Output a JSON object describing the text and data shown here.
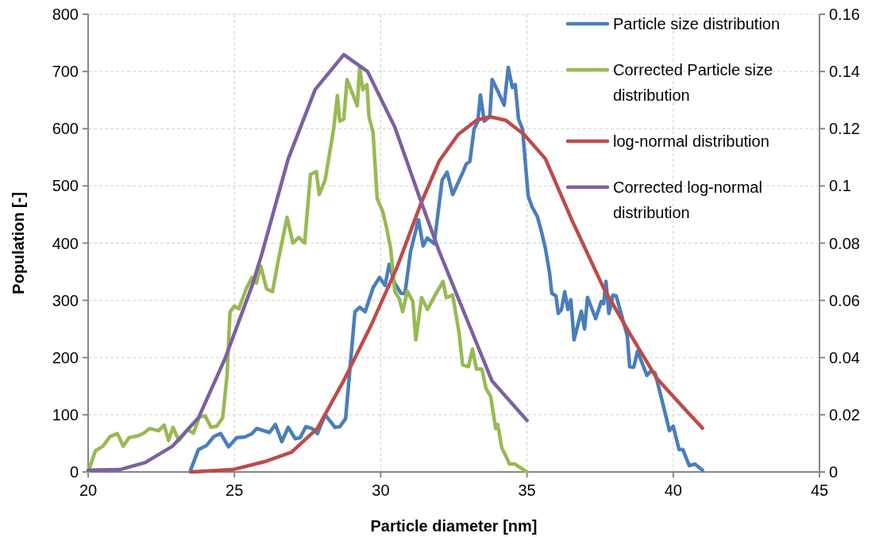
{
  "chart_data": {
    "type": "line",
    "xlabel": "Particle diameter [nm]",
    "ylabel": "Population [-]",
    "xlim": [
      20,
      45
    ],
    "xticks": [
      20,
      25,
      30,
      35,
      40,
      45
    ],
    "ylim": [
      0,
      800
    ],
    "yticks": [
      0,
      100,
      200,
      300,
      400,
      500,
      600,
      700,
      800
    ],
    "y2lim": [
      0,
      0.16
    ],
    "y2ticks": [
      0,
      0.02,
      0.04,
      0.06,
      0.08,
      0.1,
      0.12,
      0.14,
      0.16
    ],
    "grid": true,
    "legend": "top right",
    "marker": "none",
    "line_style": "solid",
    "series": [
      {
        "name": "Particle size distribution",
        "color": "#4a7ebb",
        "x": [
          23.5,
          23.77,
          24.04,
          24.3,
          24.53,
          24.8,
          25.08,
          25.35,
          25.6,
          25.76,
          26.2,
          26.4,
          26.62,
          26.84,
          27.08,
          27.25,
          27.44,
          27.65,
          27.84,
          28.1,
          28.44,
          28.6,
          28.8,
          29.12,
          29.28,
          29.47,
          29.74,
          29.96,
          30.15,
          30.29,
          30.48,
          30.7,
          30.83,
          31.02,
          31.29,
          31.45,
          31.59,
          31.83,
          32.1,
          32.27,
          32.46,
          32.65,
          32.81,
          32.92,
          33.05,
          33.19,
          33.32,
          33.41,
          33.54,
          33.73,
          33.81,
          34.03,
          34.22,
          34.36,
          34.5,
          34.6,
          34.71,
          34.85,
          35.04,
          35.17,
          35.36,
          35.5,
          35.63,
          35.77,
          35.85,
          35.99,
          36.07,
          36.18,
          36.29,
          36.4,
          36.5,
          36.61,
          36.86,
          36.97,
          37.07,
          37.35,
          37.54,
          37.62,
          37.7,
          37.8,
          37.94,
          38.05,
          38.43,
          38.51,
          38.65,
          38.78,
          39.1,
          39.25,
          39.38,
          39.7,
          39.87,
          40.0,
          40.2,
          40.33,
          40.55,
          40.74,
          41.0
        ],
        "values": [
          3,
          39,
          46,
          62,
          67,
          44,
          60,
          61,
          67,
          76,
          69,
          83,
          53,
          78,
          58,
          60,
          79,
          76,
          67,
          100,
          78,
          79,
          93,
          280,
          288,
          280,
          322,
          340,
          326,
          363,
          330,
          312,
          312,
          385,
          441,
          395,
          409,
          399,
          510,
          524,
          485,
          506,
          524,
          538,
          543,
          599,
          613,
          659,
          613,
          621,
          686,
          663,
          641,
          707,
          672,
          677,
          617,
          599,
          483,
          464,
          446,
          419,
          391,
          349,
          312,
          308,
          277,
          284,
          315,
          284,
          301,
          231,
          281,
          250,
          305,
          268,
          298,
          294,
          333,
          277,
          309,
          308,
          238,
          184,
          183,
          211,
          169,
          177,
          173,
          108,
          72,
          80,
          39,
          39,
          11,
          14,
          3
        ]
      },
      {
        "name": "Corrected Particle size distribution",
        "color": "#98b954",
        "x": [
          20,
          20.25,
          20.5,
          20.75,
          21,
          21.2,
          21.4,
          21.7,
          21.9,
          22.1,
          22.4,
          22.6,
          22.75,
          22.9,
          23.1,
          23.4,
          23.6,
          23.8,
          24.0,
          24.2,
          24.4,
          24.6,
          24.75,
          24.85,
          25.0,
          25.15,
          25.4,
          25.6,
          25.75,
          25.9,
          26.1,
          26.3,
          26.5,
          26.8,
          27.0,
          27.2,
          27.4,
          27.6,
          27.8,
          27.9,
          28.1,
          28.39,
          28.52,
          28.6,
          28.74,
          28.85,
          29.2,
          29.28,
          29.39,
          29.53,
          29.6,
          29.74,
          29.88,
          30.07,
          30.2,
          30.34,
          30.48,
          30.64,
          30.75,
          30.91,
          31.1,
          31.2,
          31.4,
          31.6,
          31.86,
          32.13,
          32.24,
          32.46,
          32.68,
          32.8,
          33.0,
          33.14,
          33.27,
          33.46,
          33.6,
          33.76,
          33.93,
          34.0,
          34.14,
          34.28,
          34.4,
          34.58,
          35.0
        ],
        "values": [
          0,
          37,
          45,
          62,
          67,
          45,
          60,
          63,
          68,
          76,
          72,
          82,
          55,
          78,
          55,
          74,
          68,
          96,
          98,
          78,
          80,
          95,
          170,
          280,
          290,
          285,
          320,
          340,
          330,
          360,
          320,
          315,
          370,
          445,
          400,
          410,
          400,
          520,
          525,
          485,
          510,
          599,
          658,
          613,
          617,
          686,
          640,
          707,
          668,
          677,
          621,
          593,
          478,
          455,
          427,
          391,
          316,
          302,
          280,
          316,
          298,
          231,
          305,
          284,
          309,
          333,
          305,
          309,
          243,
          187,
          184,
          215,
          180,
          180,
          146,
          132,
          76,
          83,
          42,
          28,
          14,
          14,
          0
        ]
      },
      {
        "name": "log-normal distribution",
        "color": "#be4b48",
        "axis": "y2",
        "x": [
          23.5,
          24.94,
          26.03,
          26.95,
          27.84,
          28.74,
          29.66,
          30.56,
          31.37,
          32.0,
          32.65,
          33.27,
          33.73,
          34.28,
          34.9,
          35.63,
          36.53,
          37.62,
          38.51,
          39.44,
          40.33,
          41.0
        ],
        "values": [
          0,
          0.0008,
          0.0036,
          0.0069,
          0.0153,
          0.032,
          0.051,
          0.0716,
          0.0937,
          0.1087,
          0.118,
          0.1229,
          0.1242,
          0.1229,
          0.118,
          0.1095,
          0.0882,
          0.0643,
          0.0485,
          0.0327,
          0.0227,
          0.0153
        ]
      },
      {
        "name": "Corrected log-normal distribution",
        "color": "#7d60a0",
        "axis": "y2",
        "x": [
          20,
          21.08,
          21.95,
          22.87,
          23.77,
          24.67,
          25.6,
          25.94,
          26.84,
          27.76,
          28.74,
          29.55,
          30.48,
          31.37,
          32.0,
          32.92,
          33.8,
          35.0
        ],
        "values": [
          0.0006,
          0.0008,
          0.0033,
          0.0089,
          0.0189,
          0.0394,
          0.065,
          0.0763,
          0.1095,
          0.1337,
          0.1459,
          0.14,
          0.1206,
          0.0948,
          0.0771,
          0.054,
          0.0319,
          0.018
        ]
      }
    ]
  }
}
